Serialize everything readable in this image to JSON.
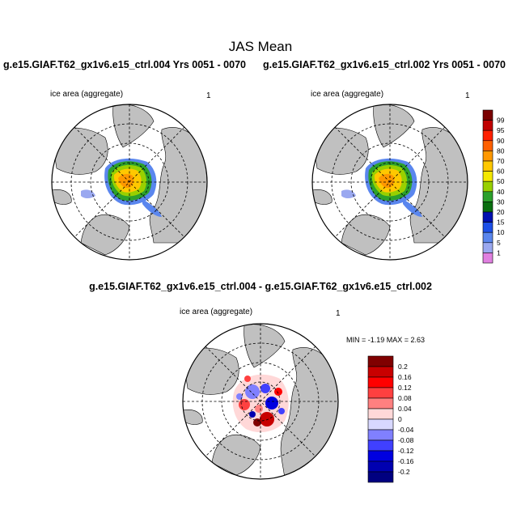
{
  "figure": {
    "title": "JAS Mean",
    "left_case": "g.e15.GIAF.T62_gx1v6.e15_ctrl.004  Yrs 0051 - 0070",
    "right_case": "g.e15.GIAF.T62_gx1v6.e15_ctrl.002  Yrs 0051 - 0070",
    "diff_title": "g.e15.GIAF.T62_gx1v6.e15_ctrl.004 - g.e15.GIAF.T62_gx1v6.e15_ctrl.002"
  },
  "panels": {
    "left": {
      "variable": "ice area  (aggregate)",
      "units": "1"
    },
    "right": {
      "variable": "ice area  (aggregate)",
      "units": "1"
    },
    "diff": {
      "variable": "ice area  (aggregate)",
      "units": "1",
      "min_max": "MIN =  -1.19 MAX =   2.63"
    }
  },
  "colorbars": {
    "main": {
      "labels": [
        "99",
        "95",
        "90",
        "80",
        "70",
        "60",
        "50",
        "40",
        "30",
        "20",
        "15",
        "10",
        "5",
        "1"
      ],
      "colors": [
        "#7a0000",
        "#c00000",
        "#ff2000",
        "#ff6000",
        "#ff9800",
        "#ffc800",
        "#f4e800",
        "#98d000",
        "#2ca02c",
        "#0a6f10",
        "#0010b0",
        "#1d50e8",
        "#5a86ee",
        "#9aa8f0",
        "#e080e0"
      ]
    },
    "diff": {
      "labels": [
        "0.2",
        "0.16",
        "0.12",
        "0.08",
        "0.04",
        "0",
        "-0.04",
        "-0.08",
        "-0.12",
        "-0.16",
        "-0.2"
      ],
      "colors": [
        "#800000",
        "#c80000",
        "#ff0000",
        "#ff4040",
        "#ff8080",
        "#ffd8d8",
        "#d8d8ff",
        "#8080ff",
        "#4040ff",
        "#0000e0",
        "#0000b0",
        "#000080"
      ]
    }
  },
  "colors": {
    "land": "#c0c0c0",
    "ocean": "#ffffff"
  }
}
